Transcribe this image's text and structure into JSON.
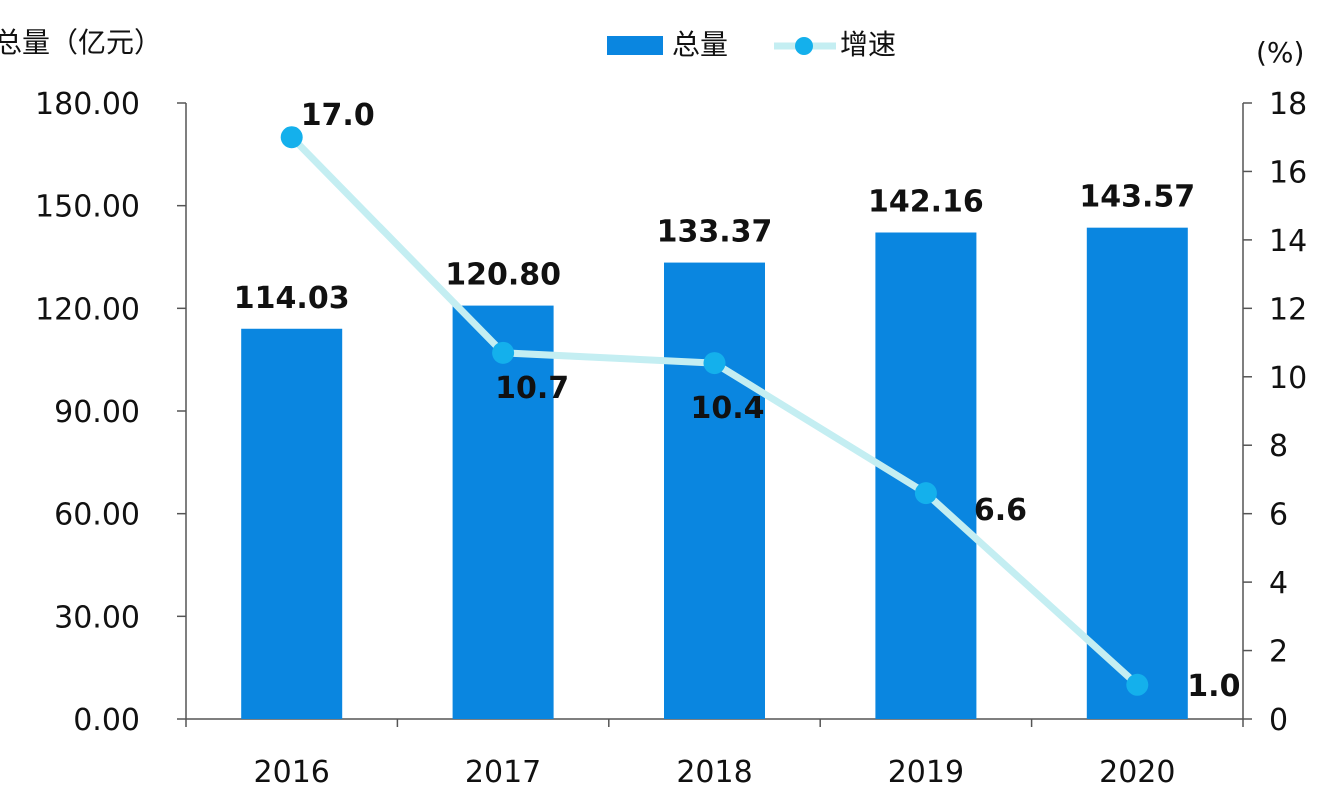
{
  "chart_data": {
    "type": "bar",
    "categories": [
      "2016",
      "2017",
      "2018",
      "2019",
      "2020"
    ],
    "series": [
      {
        "name": "总量",
        "type": "bar",
        "axis": "left",
        "values": [
          114.03,
          120.8,
          133.37,
          142.16,
          143.57
        ],
        "labels": [
          "114.03",
          "120.80",
          "133.37",
          "142.16",
          "143.57"
        ]
      },
      {
        "name": "增速",
        "type": "line",
        "axis": "right",
        "values": [
          17.0,
          10.7,
          10.4,
          6.6,
          1.0
        ],
        "labels": [
          "17.0",
          "10.7",
          "10.4",
          "6.6",
          "1.0"
        ]
      }
    ],
    "ylabel": "总量（亿元）",
    "y2label": "(%)",
    "ylim": [
      0,
      180
    ],
    "y2lim": [
      0,
      18
    ],
    "yticks": [
      "0.00",
      "30.00",
      "60.00",
      "90.00",
      "120.00",
      "150.00",
      "180.00"
    ],
    "y2ticks": [
      "0",
      "2",
      "4",
      "6",
      "8",
      "10",
      "12",
      "14",
      "16",
      "18"
    ],
    "legend": "top-center",
    "grid": false,
    "colors": {
      "bar": "#0a86e0",
      "line": "#c4eef2",
      "marker": "#14b0ec"
    }
  }
}
